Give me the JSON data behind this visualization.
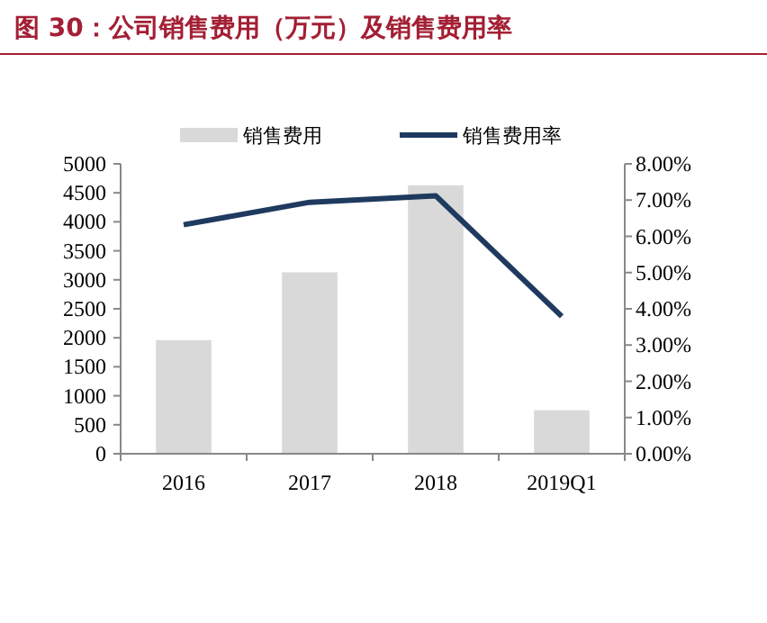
{
  "chart_data": {
    "type": "bar",
    "title": "图 30：公司销售费用（万元）及销售费用率",
    "categories": [
      "2016",
      "2017",
      "2018",
      "2019Q1"
    ],
    "series": [
      {
        "name": "销售费用",
        "color": "#d9d9d9",
        "values": [
          1960,
          3130,
          4630,
          750
        ]
      },
      {
        "name": "销售费用率",
        "type": "line",
        "axis": "y2",
        "color": "#1f3a5f",
        "values": [
          6.32,
          6.94,
          7.12,
          3.79
        ]
      }
    ],
    "ylim": [
      0,
      5000
    ],
    "yticks": [
      0,
      500,
      1000,
      1500,
      2000,
      2500,
      3000,
      3500,
      4000,
      4500,
      5000
    ],
    "y2lim": [
      0,
      8
    ],
    "y2ticks": [
      {
        "value": 0,
        "label": "0.00%"
      },
      {
        "value": 1,
        "label": "1.00%"
      },
      {
        "value": 2,
        "label": "2.00%"
      },
      {
        "value": 3,
        "label": "3.00%"
      },
      {
        "value": 4,
        "label": "4.00%"
      },
      {
        "value": 5,
        "label": "5.00%"
      },
      {
        "value": 6,
        "label": "6.00%"
      },
      {
        "value": 7,
        "label": "7.00%"
      },
      {
        "value": 8,
        "label": "8.00%"
      }
    ],
    "legend": "top",
    "grid": false,
    "marker": "none",
    "line_style": "solid"
  }
}
